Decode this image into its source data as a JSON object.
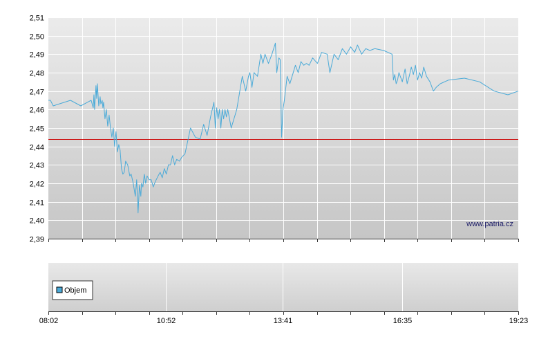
{
  "chart_data": {
    "type": "line",
    "y_ticks": [
      "2,39",
      "2,40",
      "2,41",
      "2,42",
      "2,43",
      "2,44",
      "2,45",
      "2,46",
      "2,47",
      "2,48",
      "2,49",
      "2,50",
      "2,51"
    ],
    "ylim": [
      2.39,
      2.51
    ],
    "x_tick_labels": [
      "08:02",
      "10:52",
      "13:41",
      "16:35",
      "19:23"
    ],
    "x_range": [
      "08:02",
      "19:23"
    ],
    "reference_line": {
      "value": 2.444,
      "color": "#cc0000"
    },
    "series": [
      {
        "color": "#4aaad8",
        "x": [
          "08:02",
          "08:05",
          "08:09",
          "08:34",
          "08:49",
          "09:04",
          "09:07",
          "09:08",
          "09:09",
          "09:11",
          "09:12",
          "09:13",
          "09:15",
          "09:17",
          "09:18",
          "09:20",
          "09:21",
          "09:22",
          "09:24",
          "09:26",
          "09:28",
          "09:30",
          "09:32",
          "09:34",
          "09:36",
          "09:38",
          "09:40",
          "09:42",
          "09:44",
          "09:46",
          "09:48",
          "09:50",
          "09:52",
          "09:54",
          "09:57",
          "10:00",
          "10:02",
          "10:05",
          "10:08",
          "10:10",
          "10:12",
          "10:14",
          "10:16",
          "10:17",
          "10:19",
          "10:21",
          "10:23",
          "10:25",
          "10:28",
          "10:31",
          "10:34",
          "10:37",
          "10:41",
          "10:44",
          "10:47",
          "10:50",
          "10:53",
          "10:56",
          "10:59",
          "11:02",
          "11:05",
          "11:08",
          "11:12",
          "11:15",
          "11:20",
          "11:28",
          "11:35",
          "11:42",
          "11:47",
          "11:52",
          "11:57",
          "12:02",
          "12:04",
          "12:06",
          "12:08",
          "12:10",
          "12:12",
          "12:14",
          "12:16",
          "12:18",
          "12:20",
          "12:22",
          "12:27",
          "12:35",
          "12:43",
          "12:48",
          "12:52",
          "12:54",
          "12:57",
          "13:00",
          "13:05",
          "13:10",
          "13:13",
          "13:16",
          "13:21",
          "13:26",
          "13:31",
          "13:33",
          "13:36",
          "13:38",
          "13:40",
          "13:42",
          "13:44",
          "13:48",
          "13:52",
          "13:56",
          "14:00",
          "14:04",
          "14:08",
          "14:12",
          "14:16",
          "14:20",
          "14:25",
          "14:32",
          "14:38",
          "14:46",
          "14:50",
          "14:56",
          "15:02",
          "15:08",
          "15:14",
          "15:20",
          "15:26",
          "15:30",
          "15:36",
          "15:42",
          "15:48",
          "15:55",
          "16:08",
          "16:20",
          "16:22",
          "16:24",
          "16:26",
          "16:28",
          "16:30",
          "16:35",
          "16:39",
          "16:42",
          "16:45",
          "16:48",
          "16:51",
          "16:54",
          "16:57",
          "17:00",
          "17:03",
          "17:06",
          "17:10",
          "17:15",
          "17:20",
          "17:24",
          "17:30",
          "17:42",
          "18:05",
          "18:27",
          "18:48",
          "19:08",
          "19:23"
        ],
        "y": [
          2.465,
          2.465,
          2.462,
          2.465,
          2.462,
          2.465,
          2.461,
          2.468,
          2.46,
          2.473,
          2.466,
          2.474,
          2.462,
          2.467,
          2.463,
          2.465,
          2.461,
          2.464,
          2.455,
          2.46,
          2.451,
          2.457,
          2.45,
          2.445,
          2.45,
          2.44,
          2.448,
          2.437,
          2.441,
          2.438,
          2.428,
          2.425,
          2.426,
          2.432,
          2.43,
          2.424,
          2.425,
          2.42,
          2.413,
          2.422,
          2.404,
          2.419,
          2.413,
          2.42,
          2.418,
          2.425,
          2.42,
          2.424,
          2.422,
          2.422,
          2.418,
          2.421,
          2.424,
          2.426,
          2.423,
          2.428,
          2.425,
          2.43,
          2.43,
          2.435,
          2.43,
          2.433,
          2.432,
          2.434,
          2.436,
          2.45,
          2.445,
          2.444,
          2.452,
          2.446,
          2.456,
          2.464,
          2.45,
          2.461,
          2.455,
          2.46,
          2.45,
          2.46,
          2.455,
          2.46,
          2.456,
          2.46,
          2.45,
          2.46,
          2.478,
          2.47,
          2.478,
          2.48,
          2.472,
          2.48,
          2.478,
          2.49,
          2.485,
          2.49,
          2.485,
          2.49,
          2.496,
          2.48,
          2.488,
          2.487,
          2.445,
          2.46,
          2.465,
          2.478,
          2.474,
          2.479,
          2.484,
          2.48,
          2.486,
          2.484,
          2.485,
          2.484,
          2.488,
          2.485,
          2.491,
          2.49,
          2.48,
          2.49,
          2.487,
          2.493,
          2.49,
          2.494,
          2.491,
          2.495,
          2.49,
          2.493,
          2.492,
          2.493,
          2.492,
          2.49,
          2.476,
          2.479,
          2.474,
          2.476,
          2.48,
          2.475,
          2.482,
          2.474,
          2.478,
          2.483,
          2.479,
          2.484,
          2.476,
          2.48,
          2.477,
          2.483,
          2.478,
          2.475,
          2.47,
          2.472,
          2.474,
          2.476,
          2.477,
          2.475,
          2.47,
          2.468,
          2.47
        ]
      }
    ],
    "volume_panel": {
      "legend": "Objem",
      "legend_color": "#4aaad8"
    },
    "grid": true
  },
  "watermark": "www.patria.cz"
}
